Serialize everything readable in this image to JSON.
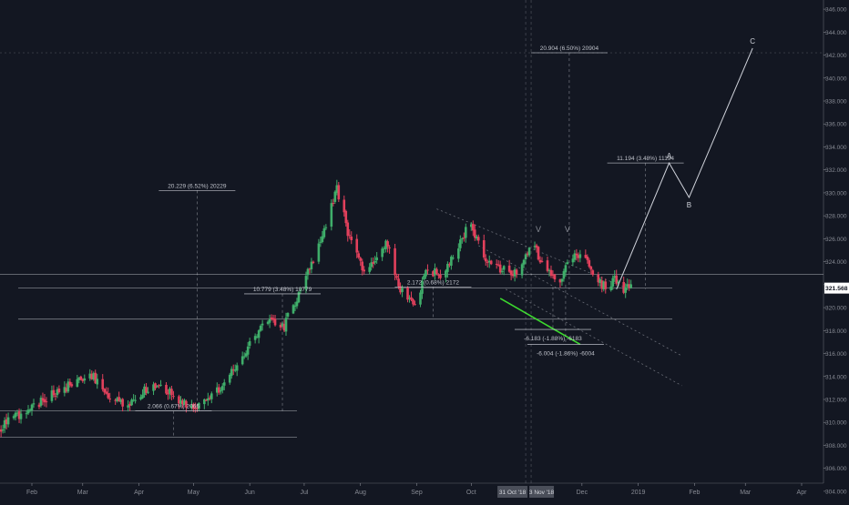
{
  "colors": {
    "background": "#131722",
    "up": "#26a69a",
    "down": "#ef5350",
    "up_candle": "#3fae6a",
    "down_candle": "#e2405c",
    "neutral": "#d1d4dc",
    "green_trend": "#3cd82e",
    "price_tag_bg": "#ffffff",
    "price_tag_text": "#131722"
  },
  "chart_data": {
    "type": "candlestick",
    "title": "",
    "xlabel": "",
    "ylabel": "",
    "ylim": [
      303.2,
      346.8
    ],
    "grid": false,
    "legend": "none",
    "last_price": "321.568",
    "y_ticks": [
      "304.000",
      "306.000",
      "308.000",
      "310.000",
      "312.000",
      "314.000",
      "316.000",
      "318.000",
      "320.000",
      "322.000",
      "324.000",
      "326.000",
      "328.000",
      "330.000",
      "332.000",
      "334.000",
      "336.000",
      "338.000",
      "340.000",
      "342.000",
      "344.000",
      "346.000"
    ],
    "x_ticks": [
      {
        "label": "Feb",
        "date": "2018-02-01"
      },
      {
        "label": "Mar",
        "date": "2018-03-01"
      },
      {
        "label": "Apr",
        "date": "2018-04-01"
      },
      {
        "label": "May",
        "date": "2018-05-01"
      },
      {
        "label": "Jun",
        "date": "2018-06-01"
      },
      {
        "label": "Jul",
        "date": "2018-07-01"
      },
      {
        "label": "Aug",
        "date": "2018-08-01"
      },
      {
        "label": "Sep",
        "date": "2018-09-01"
      },
      {
        "label": "Oct",
        "date": "2018-10-01"
      },
      {
        "label": "Dec",
        "date": "2018-12-01"
      },
      {
        "label": "2019",
        "date": "2019-01-01"
      },
      {
        "label": "Feb",
        "date": "2019-02-01"
      },
      {
        "label": "Mar",
        "date": "2019-03-01"
      },
      {
        "label": "Apr",
        "date": "2019-04-01"
      }
    ],
    "x_highlight": [
      {
        "label": "31 Oct '18",
        "date": "2018-10-31"
      },
      {
        "label": "3 Nov '18",
        "date": "2018-11-03"
      }
    ],
    "price_path": [
      [
        "2018-01-09",
        309.0
      ],
      [
        "2018-01-25",
        310.6
      ],
      [
        "2018-02-10",
        312.2
      ],
      [
        "2018-02-25",
        313.5
      ],
      [
        "2018-03-06",
        314.2
      ],
      [
        "2018-03-15",
        312.4
      ],
      [
        "2018-03-25",
        311.4
      ],
      [
        "2018-04-03",
        312.6
      ],
      [
        "2018-04-12",
        313.3
      ],
      [
        "2018-04-22",
        312.1
      ],
      [
        "2018-05-02",
        311.0
      ],
      [
        "2018-05-12",
        312.4
      ],
      [
        "2018-05-22",
        314.4
      ],
      [
        "2018-06-01",
        316.8
      ],
      [
        "2018-06-12",
        319.0
      ],
      [
        "2018-06-20",
        318.4
      ],
      [
        "2018-06-28",
        321.3
      ],
      [
        "2018-07-06",
        324.2
      ],
      [
        "2018-07-14",
        327.8
      ],
      [
        "2018-07-19",
        330.4
      ],
      [
        "2018-07-25",
        326.6
      ],
      [
        "2018-08-03",
        323.3
      ],
      [
        "2018-08-10",
        324.4
      ],
      [
        "2018-08-16",
        325.6
      ],
      [
        "2018-08-22",
        322.0
      ],
      [
        "2018-08-30",
        320.2
      ],
      [
        "2018-09-07",
        323.2
      ],
      [
        "2018-09-15",
        322.8
      ],
      [
        "2018-09-24",
        325.4
      ],
      [
        "2018-09-30",
        327.4
      ],
      [
        "2018-10-08",
        324.6
      ],
      [
        "2018-10-16",
        323.4
      ],
      [
        "2018-10-25",
        323.0
      ],
      [
        "2018-11-03",
        325.6
      ],
      [
        "2018-11-11",
        323.6
      ],
      [
        "2018-11-18",
        322.3
      ],
      [
        "2018-11-25",
        324.4
      ],
      [
        "2018-12-03",
        324.7
      ],
      [
        "2018-12-09",
        322.6
      ],
      [
        "2018-12-14",
        321.7
      ],
      [
        "2018-12-19",
        322.6
      ],
      [
        "2018-12-24",
        321.7
      ],
      [
        "2018-12-30",
        321.6
      ]
    ],
    "horizontal_levels": [
      322.9,
      321.7,
      319.0,
      311.0,
      308.7
    ],
    "measurements": [
      {
        "label": "20.229 (6.52%) 20229",
        "date": "2018-05-03",
        "from": 310.9,
        "to": 330.2
      },
      {
        "label": "10.779 (3.48%) 10779",
        "date": "2018-06-19",
        "from": 310.9,
        "to": 321.2
      },
      {
        "label": "2.066 (0.67%) 2066",
        "date": "2018-04-20",
        "from": 308.7,
        "to": 311.0
      },
      {
        "label": "2.172 (0.68%) 2172",
        "date": "2018-09-10",
        "from": 319.1,
        "to": 321.8
      },
      {
        "label": "-6.183 (-1.88%) -6183",
        "date": "2018-11-15",
        "from": 318.1,
        "to": 321.8
      },
      {
        "label": "-6.004 (-1.86%) -6004",
        "date": "2018-11-22",
        "from": 316.8,
        "to": 322.0
      },
      {
        "label": "11.194 (3.48%) 11194",
        "date": "2019-01-05",
        "from": 321.6,
        "to": 332.6
      },
      {
        "label": "20.904 (6.50%) 20904",
        "date": "2018-11-24",
        "from": 321.6,
        "to": 342.2
      }
    ],
    "projection": [
      {
        "label": "",
        "date": "2018-12-20",
        "y": 321.6
      },
      {
        "label": "A",
        "date": "2019-01-18",
        "y": 332.6
      },
      {
        "label": "B",
        "date": "2019-01-29",
        "y": 329.6
      },
      {
        "label": "C",
        "date": "2019-03-05",
        "y": 342.6
      }
    ],
    "markers": [
      {
        "label": "V",
        "date": "2018-11-07",
        "y": 326.6
      },
      {
        "label": "V",
        "date": "2018-11-23",
        "y": 326.6
      }
    ]
  }
}
